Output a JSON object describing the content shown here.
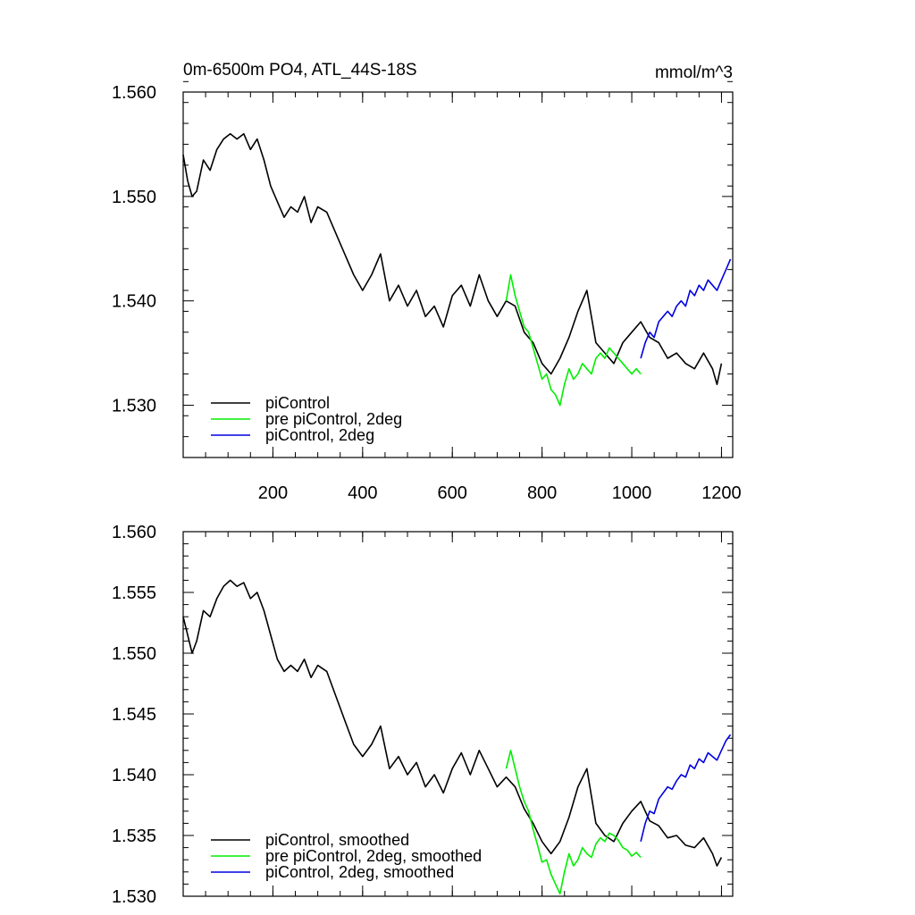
{
  "title": "0m-6500m PO4, ATL_44S-18S",
  "units": "mmol/m^3",
  "colors": {
    "piControl": "#000000",
    "pre_piControl_2deg": "#00ee00",
    "piControl_2deg": "#0000e0"
  },
  "chart_data": [
    {
      "type": "line",
      "title": "0m-6500m PO4, ATL_44S-18S",
      "units": "mmol/m^3",
      "xlim": [
        0,
        1225
      ],
      "ylim": [
        1.525,
        1.56
      ],
      "xticks": [
        200,
        400,
        600,
        800,
        1000,
        1200
      ],
      "xtick_labels": [
        "200",
        "400",
        "600",
        "800",
        "1000",
        "1200"
      ],
      "yticks": [
        1.53,
        1.54,
        1.55,
        1.56
      ],
      "ytick_labels": [
        "1.530",
        "1.540",
        "1.550",
        "1.560"
      ],
      "y_minor_step": 0.002,
      "x_minor_step": 50,
      "legend_position": "bottom-left",
      "series": [
        {
          "name": "piControl",
          "color": "#000000",
          "x": [
            0,
            10,
            20,
            30,
            45,
            60,
            75,
            90,
            105,
            120,
            135,
            150,
            165,
            180,
            195,
            210,
            225,
            240,
            255,
            270,
            285,
            300,
            320,
            340,
            360,
            380,
            400,
            420,
            440,
            460,
            480,
            500,
            520,
            540,
            560,
            580,
            600,
            620,
            640,
            660,
            680,
            700,
            720,
            740,
            760,
            780,
            800,
            820,
            840,
            860,
            880,
            900,
            920,
            940,
            960,
            980,
            1000,
            1020,
            1040,
            1060,
            1080,
            1100,
            1120,
            1140,
            1160,
            1180,
            1190,
            1200
          ],
          "y": [
            1.554,
            1.5515,
            1.55,
            1.5505,
            1.5535,
            1.5525,
            1.5545,
            1.5555,
            1.556,
            1.5555,
            1.556,
            1.5545,
            1.5555,
            1.5535,
            1.551,
            1.5495,
            1.548,
            1.549,
            1.5485,
            1.55,
            1.5475,
            1.549,
            1.5485,
            1.5465,
            1.5445,
            1.5425,
            1.541,
            1.5425,
            1.5445,
            1.54,
            1.5415,
            1.5395,
            1.541,
            1.5385,
            1.5395,
            1.5375,
            1.5405,
            1.5415,
            1.5395,
            1.5425,
            1.54,
            1.5385,
            1.54,
            1.5395,
            1.537,
            1.536,
            1.534,
            1.533,
            1.5345,
            1.5365,
            1.539,
            1.541,
            1.536,
            1.535,
            1.534,
            1.536,
            1.537,
            1.538,
            1.5365,
            1.536,
            1.5345,
            1.535,
            1.534,
            1.5335,
            1.535,
            1.5335,
            1.532,
            1.534
          ]
        },
        {
          "name": "pre piControl, 2deg",
          "color": "#00ee00",
          "x": [
            720,
            730,
            740,
            750,
            760,
            770,
            780,
            790,
            800,
            810,
            820,
            830,
            840,
            850,
            860,
            870,
            880,
            890,
            900,
            910,
            920,
            930,
            940,
            950,
            960,
            970,
            980,
            990,
            1000,
            1010,
            1020
          ],
          "y": [
            1.54,
            1.5425,
            1.5405,
            1.539,
            1.5375,
            1.537,
            1.5355,
            1.534,
            1.5325,
            1.533,
            1.5315,
            1.531,
            1.53,
            1.532,
            1.5335,
            1.5325,
            1.533,
            1.534,
            1.5335,
            1.533,
            1.5345,
            1.535,
            1.5345,
            1.5355,
            1.535,
            1.5345,
            1.534,
            1.5335,
            1.533,
            1.5335,
            1.533
          ]
        },
        {
          "name": "piControl, 2deg",
          "color": "#0000e0",
          "x": [
            1020,
            1030,
            1040,
            1050,
            1060,
            1070,
            1080,
            1090,
            1100,
            1110,
            1120,
            1130,
            1140,
            1150,
            1160,
            1170,
            1180,
            1190,
            1200,
            1210,
            1220
          ],
          "y": [
            1.5345,
            1.536,
            1.537,
            1.5365,
            1.538,
            1.5385,
            1.539,
            1.5385,
            1.5395,
            1.54,
            1.5395,
            1.541,
            1.5405,
            1.5415,
            1.541,
            1.542,
            1.5415,
            1.541,
            1.542,
            1.543,
            1.544
          ]
        }
      ]
    },
    {
      "type": "line",
      "xlim": [
        0,
        1225
      ],
      "ylim": [
        1.53,
        1.56
      ],
      "xticks": [
        200,
        400,
        600,
        800,
        1000,
        1200
      ],
      "yticks": [
        1.53,
        1.535,
        1.54,
        1.545,
        1.55,
        1.555,
        1.56
      ],
      "ytick_labels": [
        "1.530",
        "1.535",
        "1.540",
        "1.545",
        "1.550",
        "1.555",
        "1.560"
      ],
      "y_minor_step": 0.001,
      "x_minor_step": 50,
      "legend_position": "bottom-left",
      "series": [
        {
          "name": "piControl, smoothed",
          "color": "#000000",
          "x": [
            0,
            10,
            20,
            30,
            45,
            60,
            75,
            90,
            105,
            120,
            135,
            150,
            165,
            180,
            195,
            210,
            225,
            240,
            255,
            270,
            285,
            300,
            320,
            340,
            360,
            380,
            400,
            420,
            440,
            460,
            480,
            500,
            520,
            540,
            560,
            580,
            600,
            620,
            640,
            660,
            680,
            700,
            720,
            740,
            760,
            780,
            800,
            820,
            840,
            860,
            880,
            900,
            920,
            940,
            960,
            980,
            1000,
            1020,
            1040,
            1060,
            1080,
            1100,
            1120,
            1140,
            1160,
            1180,
            1190,
            1200
          ],
          "y": [
            1.553,
            1.5515,
            1.55,
            1.551,
            1.5535,
            1.553,
            1.5545,
            1.5555,
            1.556,
            1.5555,
            1.5558,
            1.5545,
            1.555,
            1.5535,
            1.5515,
            1.5495,
            1.5485,
            1.549,
            1.5485,
            1.5495,
            1.548,
            1.549,
            1.5485,
            1.5465,
            1.5445,
            1.5425,
            1.5415,
            1.5425,
            1.544,
            1.5405,
            1.5415,
            1.54,
            1.541,
            1.539,
            1.54,
            1.5385,
            1.5405,
            1.5418,
            1.54,
            1.542,
            1.5405,
            1.539,
            1.5398,
            1.539,
            1.5372,
            1.536,
            1.5345,
            1.5335,
            1.5345,
            1.5365,
            1.539,
            1.5405,
            1.536,
            1.535,
            1.5345,
            1.536,
            1.537,
            1.5378,
            1.5362,
            1.5358,
            1.5348,
            1.535,
            1.5342,
            1.534,
            1.5348,
            1.5335,
            1.5325,
            1.5332
          ]
        },
        {
          "name": "pre piControl, 2deg, smoothed",
          "color": "#00ee00",
          "x": [
            720,
            730,
            740,
            750,
            760,
            770,
            780,
            790,
            800,
            810,
            820,
            830,
            840,
            850,
            860,
            870,
            880,
            890,
            900,
            910,
            920,
            930,
            940,
            950,
            960,
            970,
            980,
            990,
            1000,
            1010,
            1020
          ],
          "y": [
            1.5405,
            1.542,
            1.5405,
            1.539,
            1.5378,
            1.537,
            1.5355,
            1.5342,
            1.5328,
            1.533,
            1.5318,
            1.531,
            1.5302,
            1.532,
            1.5335,
            1.5325,
            1.533,
            1.534,
            1.5335,
            1.5332,
            1.5343,
            1.5348,
            1.5345,
            1.5352,
            1.535,
            1.5346,
            1.534,
            1.5338,
            1.5333,
            1.5336,
            1.5332
          ]
        },
        {
          "name": "piControl, 2deg, smoothed",
          "color": "#0000e0",
          "x": [
            1020,
            1030,
            1040,
            1050,
            1060,
            1070,
            1080,
            1090,
            1100,
            1110,
            1120,
            1130,
            1140,
            1150,
            1160,
            1170,
            1180,
            1190,
            1200,
            1210,
            1220
          ],
          "y": [
            1.5345,
            1.536,
            1.537,
            1.5368,
            1.538,
            1.5385,
            1.539,
            1.5388,
            1.5395,
            1.54,
            1.5398,
            1.5408,
            1.5405,
            1.5413,
            1.541,
            1.5418,
            1.5415,
            1.5412,
            1.542,
            1.5428,
            1.5433
          ]
        }
      ]
    }
  ]
}
